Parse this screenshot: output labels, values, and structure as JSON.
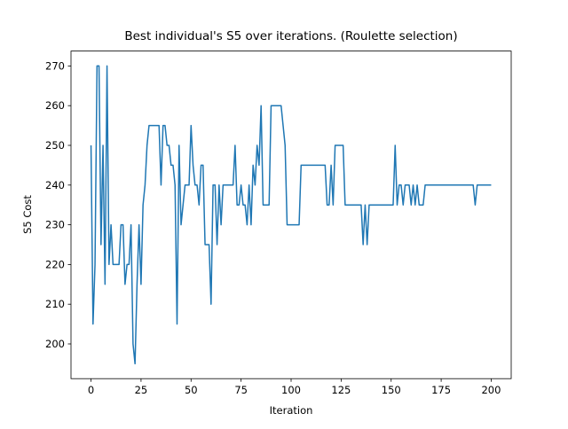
{
  "chart_data": {
    "type": "line",
    "title": "Best individual's S5 over iterations. (Roulette selection)",
    "xlabel": "Iteration",
    "ylabel": "S5 Cost",
    "color": "#1f77b4",
    "x": [
      0,
      1,
      2,
      3,
      4,
      5,
      6,
      7,
      8,
      9,
      10,
      11,
      12,
      13,
      14,
      15,
      16,
      17,
      18,
      19,
      20,
      21,
      22,
      23,
      24,
      25,
      26,
      27,
      28,
      29,
      30,
      31,
      32,
      33,
      34,
      35,
      36,
      37,
      38,
      39,
      40,
      41,
      42,
      43,
      44,
      45,
      46,
      47,
      48,
      49,
      50,
      51,
      52,
      53,
      54,
      55,
      56,
      57,
      58,
      59,
      60,
      61,
      62,
      63,
      64,
      65,
      66,
      67,
      68,
      69,
      70,
      71,
      72,
      73,
      74,
      75,
      76,
      77,
      78,
      79,
      80,
      81,
      82,
      83,
      84,
      85,
      86,
      87,
      88,
      89,
      90,
      91,
      92,
      93,
      94,
      95,
      96,
      97,
      98,
      99,
      100,
      101,
      102,
      103,
      104,
      105,
      106,
      107,
      108,
      109,
      110,
      111,
      112,
      113,
      114,
      115,
      116,
      117,
      118,
      119,
      120,
      121,
      122,
      123,
      124,
      125,
      126,
      127,
      128,
      129,
      130,
      131,
      132,
      133,
      134,
      135,
      136,
      137,
      138,
      139,
      140,
      141,
      142,
      143,
      144,
      145,
      146,
      147,
      148,
      149,
      150,
      151,
      152,
      153,
      154,
      155,
      156,
      157,
      158,
      159,
      160,
      161,
      162,
      163,
      164,
      165,
      166,
      167,
      168,
      169,
      170,
      171,
      172,
      173,
      174,
      175,
      176,
      177,
      178,
      179,
      180,
      181,
      182,
      183,
      184,
      185,
      186,
      187,
      188,
      189,
      190,
      191,
      192,
      193,
      194,
      195,
      196,
      197,
      198,
      199,
      200
    ],
    "values": [
      250,
      205,
      220,
      270,
      270,
      225,
      250,
      215,
      270,
      220,
      230,
      220,
      220,
      220,
      220,
      230,
      230,
      215,
      220,
      220,
      230,
      200,
      195,
      215,
      230,
      215,
      235,
      240,
      250,
      255,
      255,
      255,
      255,
      255,
      255,
      240,
      255,
      255,
      250,
      250,
      245,
      245,
      240,
      205,
      250,
      230,
      235,
      240,
      240,
      240,
      255,
      245,
      240,
      240,
      235,
      245,
      245,
      225,
      225,
      225,
      210,
      240,
      240,
      225,
      240,
      230,
      240,
      240,
      240,
      240,
      240,
      240,
      250,
      235,
      235,
      240,
      235,
      235,
      230,
      240,
      230,
      245,
      240,
      250,
      245,
      260,
      235,
      235,
      235,
      235,
      260,
      260,
      260,
      260,
      260,
      260,
      255,
      250,
      230,
      230,
      230,
      230,
      230,
      230,
      230,
      245,
      245,
      245,
      245,
      245,
      245,
      245,
      245,
      245,
      245,
      245,
      245,
      245,
      235,
      235,
      245,
      235,
      250,
      250,
      250,
      250,
      250,
      235,
      235,
      235,
      235,
      235,
      235,
      235,
      235,
      235,
      225,
      235,
      225,
      235,
      235,
      235,
      235,
      235,
      235,
      235,
      235,
      235,
      235,
      235,
      235,
      235,
      250,
      235,
      240,
      240,
      235,
      240,
      240,
      240,
      235,
      240,
      235,
      240,
      235,
      235,
      235,
      240,
      240,
      240,
      240,
      240,
      240,
      240,
      240,
      240,
      240,
      240,
      240,
      240,
      240,
      240,
      240,
      240,
      240,
      240,
      240,
      240,
      240,
      240,
      240,
      240,
      235,
      240,
      240,
      240,
      240,
      240,
      240,
      240,
      240
    ],
    "xlim": [
      -10,
      210
    ],
    "xticks": [
      0,
      25,
      50,
      75,
      100,
      125,
      150,
      175,
      200
    ],
    "ylim": [
      191.25,
      273.75
    ],
    "yticks": [
      200,
      210,
      220,
      230,
      240,
      250,
      260,
      270
    ]
  }
}
